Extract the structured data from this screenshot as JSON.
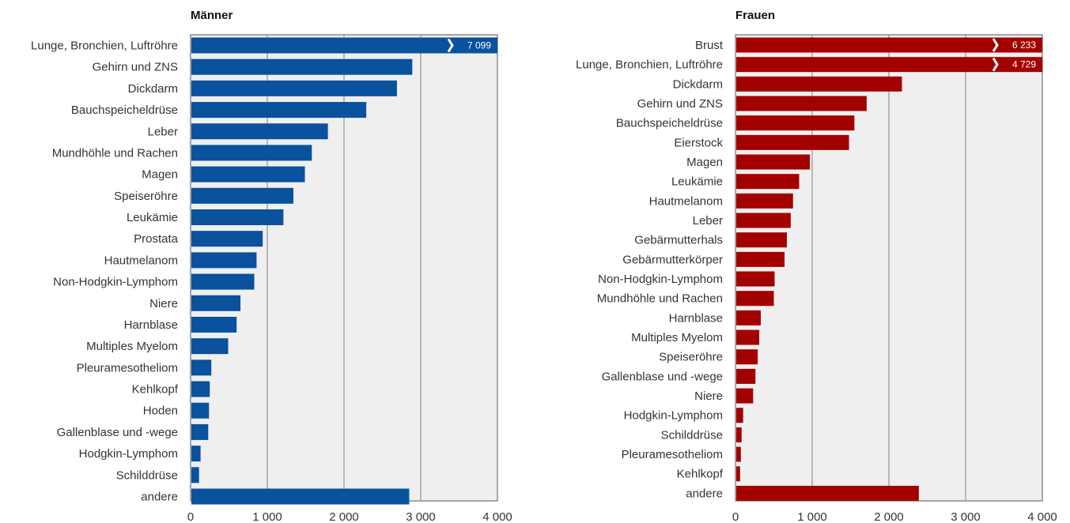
{
  "colors": {
    "men": "#0a519e",
    "women": "#a30000",
    "plot_bg": "#efefef",
    "grid": "#a6a6a6",
    "frame": "#8c8c8c"
  },
  "chart_data": [
    {
      "type": "bar",
      "orientation": "horizontal",
      "title": "Männer",
      "xlim": [
        0,
        4000
      ],
      "ticks": [
        0,
        1000,
        2000,
        3000,
        4000
      ],
      "tick_labels": [
        "0",
        "1 000",
        "2 000",
        "3 000",
        "4 000"
      ],
      "categories": [
        "Lunge, Bronchien, Luftröhre",
        "Gehirn und ZNS",
        "Dickdarm",
        "Bauchspeicheldrüse",
        "Leber",
        "Mundhöhle und Rachen",
        "Magen",
        "Speiseröhre",
        "Leukämie",
        "Prostata",
        "Hautmelanom",
        "Non-Hodgkin-Lymphom",
        "Niere",
        "Harnblase",
        "Multiples Myelom",
        "Pleuramesotheliom",
        "Kehlkopf",
        "Hoden",
        "Gallenblase und -wege",
        "Hodgkin-Lymphom",
        "Schilddrüse",
        "andere"
      ],
      "values": [
        7099,
        2890,
        2690,
        2290,
        1790,
        1580,
        1490,
        1340,
        1210,
        940,
        860,
        830,
        650,
        600,
        490,
        270,
        250,
        240,
        230,
        130,
        110,
        2850
      ],
      "data_labels": [
        "7 099",
        "",
        "",
        "",
        "",
        "",
        "",
        "",
        "",
        "",
        "",
        "",
        "",
        "",
        "",
        "",
        "",
        "",
        "",
        "",
        "",
        ""
      ],
      "grid": true
    },
    {
      "type": "bar",
      "orientation": "horizontal",
      "title": "Frauen",
      "xlim": [
        0,
        4000
      ],
      "ticks": [
        0,
        1000,
        2000,
        3000,
        4000
      ],
      "tick_labels": [
        "0",
        "1 000",
        "2 000",
        "3 000",
        "4 000"
      ],
      "categories": [
        "Brust",
        "Lunge, Bronchien, Luftröhre",
        "Dickdarm",
        "Gehirn und ZNS",
        "Bauchspeicheldrüse",
        "Eierstock",
        "Magen",
        "Leukämie",
        "Hautmelanom",
        "Leber",
        "Gebärmutterhals",
        "Gebärmutterkörper",
        "Non-Hodgkin-Lymphom",
        "Mundhöhle und Rachen",
        "Harnblase",
        "Multiples Myelom",
        "Speiseröhre",
        "Gallenblase und -wege",
        "Niere",
        "Hodgkin-Lymphom",
        "Schilddrüse",
        "Pleuramesotheliom",
        "Kehlkopf",
        "andere"
      ],
      "values": [
        6233,
        4729,
        2170,
        1710,
        1550,
        1480,
        970,
        830,
        750,
        720,
        670,
        640,
        510,
        500,
        330,
        310,
        290,
        260,
        230,
        100,
        80,
        70,
        60,
        2390
      ],
      "data_labels": [
        "6 233",
        "4 729",
        "",
        "",
        "",
        "",
        "",
        "",
        "",
        "",
        "",
        "",
        "",
        "",
        "",
        "",
        "",
        "",
        "",
        "",
        "",
        "",
        "",
        ""
      ],
      "grid": true
    }
  ]
}
